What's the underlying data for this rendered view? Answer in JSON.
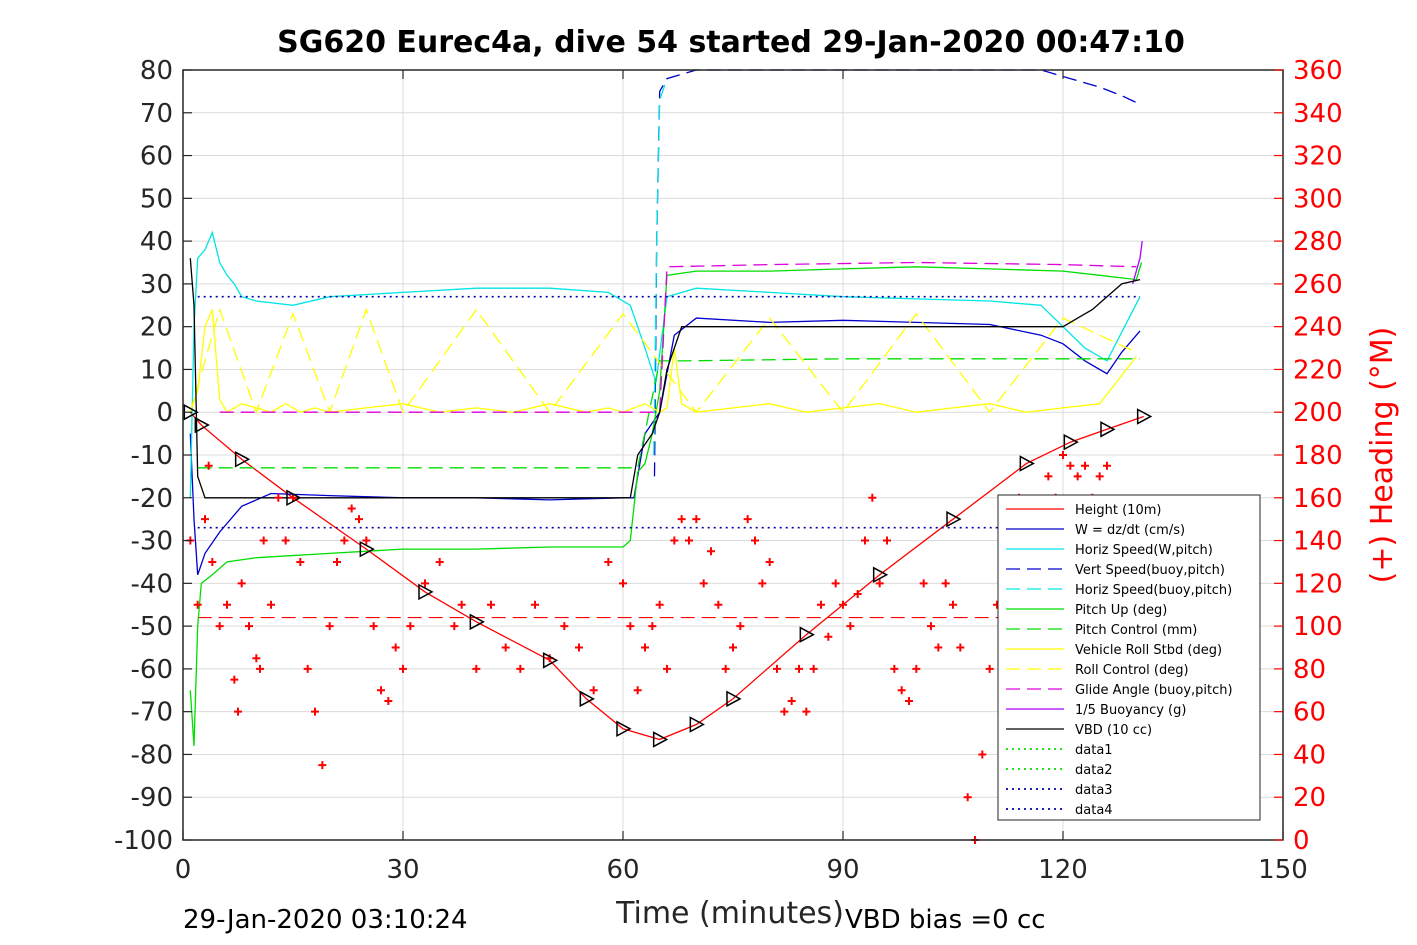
{
  "chart_data": {
    "type": "line",
    "title": "SG620 Eurec4a, dive 54 started 29-Jan-2020 00:47:10",
    "xlabel": "Time (minutes)",
    "ylabel": "",
    "ylabel_right": "(+) Heading (°M)",
    "xlim": [
      0,
      150
    ],
    "ylim": [
      -100,
      80
    ],
    "ylim_right": [
      0,
      360
    ],
    "x_ticks": [
      "0",
      "30",
      "60",
      "90",
      "120",
      "150"
    ],
    "y_ticks": [
      "80",
      "70",
      "60",
      "50",
      "40",
      "30",
      "20",
      "10",
      "0",
      "-10",
      "-20",
      "-30",
      "-40",
      "-50",
      "-60",
      "-70",
      "-80",
      "-90",
      "-100"
    ],
    "y_ticks_right": [
      "360",
      "340",
      "320",
      "300",
      "280",
      "260",
      "240",
      "220",
      "200",
      "180",
      "160",
      "140",
      "120",
      "100",
      "80",
      "60",
      "40",
      "20",
      "0"
    ],
    "grid": true,
    "legend_position": "lower-right",
    "footer_left": "29-Jan-2020 03:10:24",
    "footer_right": "VBD bias =0 cc",
    "series": [
      {
        "name": "Height (10m)",
        "color": "#ff0000",
        "style": "solid",
        "marker": "triangle",
        "x": [
          1.0,
          2.5,
          8,
          15,
          25,
          33,
          40,
          50,
          55,
          60,
          65,
          70,
          75,
          85,
          95,
          105,
          115,
          121,
          126,
          131
        ],
        "y": [
          0,
          -3,
          -11,
          -20,
          -32,
          -42,
          -49,
          -58,
          -67,
          -74,
          -76.5,
          -73,
          -67,
          -52,
          -38,
          -25,
          -12,
          -7,
          -4,
          -1
        ]
      },
      {
        "name": "W = dz/dt (cm/s)",
        "color": "#0000cc",
        "style": "solid",
        "x": [
          1,
          1.5,
          2,
          3,
          5,
          8,
          12,
          20,
          30,
          40,
          50,
          60,
          61.5,
          63,
          65,
          67,
          70,
          80,
          90,
          100,
          110,
          117,
          120,
          123,
          126,
          128,
          130.5
        ],
        "y": [
          -5,
          -25,
          -38,
          -33,
          -28,
          -22,
          -19,
          -19.5,
          -20,
          -20,
          -20.5,
          -20,
          -20,
          -5,
          0,
          18,
          22,
          21,
          21.5,
          21,
          20.5,
          18,
          16,
          12,
          9,
          14,
          19
        ]
      },
      {
        "name": "Horiz Speed(W,pitch)",
        "color": "#00e5e5",
        "style": "solid",
        "x": [
          1,
          1.5,
          2,
          3,
          4,
          5,
          6,
          7,
          8,
          10,
          15,
          20,
          30,
          40,
          50,
          58,
          61,
          63,
          64.5,
          66,
          70,
          80,
          90,
          100,
          110,
          117,
          120,
          123,
          126,
          129,
          130.5
        ],
        "y": [
          -20,
          20,
          36,
          38,
          42,
          35,
          32,
          30,
          27,
          26,
          25,
          27,
          28,
          29,
          29,
          28,
          25,
          15,
          7,
          27,
          29,
          28,
          27,
          26.5,
          26,
          25,
          20,
          15,
          12,
          22,
          27
        ]
      },
      {
        "name": "Vert Speed(buoy,pitch)",
        "color": "#0000cc",
        "style": "dashed",
        "x": [
          64.3,
          64.6,
          65.0,
          66,
          70,
          75,
          80,
          90,
          100,
          110,
          117,
          121,
          125,
          128,
          130.5
        ],
        "y": [
          -15,
          40,
          75,
          78,
          80,
          80,
          80,
          80,
          80,
          80,
          80,
          78,
          76,
          74,
          72
        ]
      },
      {
        "name": "Horiz Speed(buoy,pitch)",
        "color": "#00e5e5",
        "style": "dashed",
        "x": [
          64.2,
          64.6,
          65.0,
          66
        ],
        "y": [
          -10,
          40,
          73,
          78
        ]
      },
      {
        "name": "Pitch Up (deg)",
        "color": "#00dd00",
        "style": "solid",
        "x": [
          1,
          1.5,
          2,
          2.5,
          4,
          6,
          10,
          20,
          30,
          40,
          50,
          60,
          61,
          62,
          63,
          64,
          65,
          66,
          70,
          80,
          90,
          100,
          110,
          120,
          125,
          130,
          130.7
        ],
        "y": [
          -65,
          -78,
          -50,
          -40,
          -38,
          -35,
          -34,
          -33,
          -32,
          -32,
          -31.5,
          -31.5,
          -30,
          -14,
          -12,
          -5,
          5,
          32,
          33,
          33,
          33.5,
          34,
          33.5,
          33,
          32,
          31,
          35
        ]
      },
      {
        "name": "Pitch Control (mm)",
        "color": "#00dd00",
        "style": "dashed",
        "x": [
          2,
          3,
          7,
          30,
          50,
          61,
          62,
          65,
          68,
          90,
          110,
          125,
          130.5
        ],
        "y": [
          -13,
          -13,
          -13,
          -13,
          -13,
          -13,
          -13,
          12,
          12,
          12.5,
          12.5,
          12.5,
          12.5
        ]
      },
      {
        "name": "Vehicle Roll Stbd (deg)",
        "color": "#ffff00",
        "style": "solid",
        "x": [
          1,
          2,
          3,
          4,
          5,
          6,
          8,
          10,
          12,
          14,
          16,
          18,
          20,
          25,
          30,
          35,
          40,
          45,
          50,
          55,
          58,
          60,
          63,
          65,
          66,
          67,
          68,
          70,
          75,
          80,
          85,
          90,
          95,
          100,
          105,
          110,
          115,
          120,
          125,
          130
        ],
        "y": [
          0,
          5,
          20,
          24,
          3,
          0,
          2,
          1,
          0,
          2,
          0,
          1,
          0,
          1,
          2,
          0,
          1,
          0,
          2,
          0,
          1,
          0,
          2,
          0,
          1,
          15,
          2,
          0,
          1,
          2,
          0,
          1,
          2,
          0,
          1,
          2,
          0,
          1,
          2,
          13
        ]
      },
      {
        "name": "Roll Control (deg)",
        "color": "#ffff00",
        "style": "dashed",
        "x": [
          1,
          5,
          10,
          15,
          20,
          25,
          30,
          40,
          50,
          60,
          70,
          80,
          90,
          100,
          110,
          120,
          130
        ],
        "y": [
          0,
          24,
          0,
          23,
          0,
          24,
          0,
          24,
          0,
          23,
          0,
          22,
          0,
          23,
          0,
          22,
          14
        ]
      },
      {
        "name": "Glide Angle (buoy,pitch)",
        "color": "#dd00dd",
        "style": "dashed",
        "x": [
          5,
          30,
          50,
          61,
          65,
          66,
          80,
          100,
          120,
          130
        ],
        "y": [
          0,
          0,
          0,
          0,
          0,
          34,
          34.5,
          35,
          34.5,
          34
        ]
      },
      {
        "name": "1/5 Buoyancy (g)",
        "color": "#aa00ff",
        "style": "solid",
        "x": [
          129.5,
          130,
          130.5,
          130.8
        ],
        "y": [
          30,
          33,
          36,
          40
        ]
      },
      {
        "name": "VBD (10 cc)",
        "color": "#000000",
        "style": "solid",
        "x": [
          1,
          1.5,
          2,
          3,
          4,
          10,
          30,
          50,
          60,
          61,
          62,
          64,
          65,
          66,
          68,
          80,
          100,
          117,
          120,
          122,
          124,
          126,
          128,
          130.5
        ],
        "y": [
          36,
          25,
          -15,
          -20,
          -20,
          -20,
          -20,
          -20,
          -20,
          -20,
          -10,
          -5,
          0,
          10,
          20,
          20,
          20,
          20,
          20,
          22,
          24,
          27,
          30,
          31
        ]
      },
      {
        "name": "data1",
        "color": "#00dd00",
        "style": "dotted",
        "x": [],
        "y": []
      },
      {
        "name": "data2",
        "color": "#00dd00",
        "style": "dotted",
        "x": [],
        "y": []
      },
      {
        "name": "data3",
        "color": "#0000aa",
        "style": "dotted",
        "x": [
          2,
          130.5
        ],
        "y": [
          27,
          27
        ]
      },
      {
        "name": "data4",
        "color": "#0000aa",
        "style": "dotted",
        "x": [
          2,
          130.5
        ],
        "y": [
          -27,
          -27
        ]
      }
    ],
    "reference_lines": [
      {
        "color": "#ff0000",
        "style": "dashed",
        "y": -48,
        "x": [
          2,
          130.5
        ]
      }
    ],
    "heading_series": {
      "name": "Heading",
      "color": "#ff0000",
      "marker": "plus",
      "axis": "right",
      "x": [
        1,
        2,
        3,
        3.5,
        4,
        5,
        6,
        7,
        7.5,
        8,
        9,
        10,
        10.5,
        11,
        12,
        13,
        14,
        15,
        16,
        17,
        18,
        19,
        20,
        21,
        22,
        23,
        24,
        25,
        26,
        27,
        28,
        29,
        30,
        31,
        33,
        35,
        37,
        38,
        40,
        42,
        44,
        46,
        48,
        50,
        52,
        54,
        56,
        58,
        60,
        61,
        62,
        63,
        64,
        65,
        66,
        67,
        68,
        69,
        70,
        71,
        72,
        73,
        74,
        75,
        76,
        77,
        78,
        79,
        80,
        81,
        82,
        83,
        84,
        85,
        86,
        87,
        88,
        89,
        90,
        91,
        92,
        93,
        94,
        95,
        96,
        97,
        98,
        99,
        100,
        101,
        102,
        103,
        104,
        105,
        106,
        107,
        108,
        109,
        110,
        111,
        112,
        113,
        114,
        115,
        116,
        117,
        118,
        119,
        120,
        121,
        122,
        123,
        124,
        125,
        126
      ],
      "y": [
        140,
        110,
        150,
        175,
        130,
        100,
        110,
        75,
        60,
        120,
        100,
        85,
        80,
        140,
        110,
        160,
        140,
        160,
        130,
        80,
        60,
        35,
        100,
        130,
        140,
        155,
        150,
        140,
        100,
        70,
        65,
        90,
        80,
        100,
        120,
        130,
        100,
        110,
        80,
        110,
        90,
        80,
        110,
        85,
        100,
        90,
        70,
        130,
        120,
        100,
        70,
        90,
        100,
        110,
        80,
        140,
        150,
        140,
        150,
        120,
        135,
        110,
        80,
        90,
        100,
        150,
        140,
        120,
        130,
        80,
        60,
        65,
        80,
        60,
        80,
        110,
        95,
        120,
        110,
        100,
        115,
        140,
        160,
        120,
        140,
        80,
        70,
        65,
        80,
        120,
        100,
        90,
        120,
        110,
        90,
        20,
        0,
        40,
        80,
        110,
        140,
        150,
        160,
        130,
        140,
        150,
        170,
        160,
        180,
        175,
        170,
        175,
        160,
        170,
        175
      ]
    }
  }
}
